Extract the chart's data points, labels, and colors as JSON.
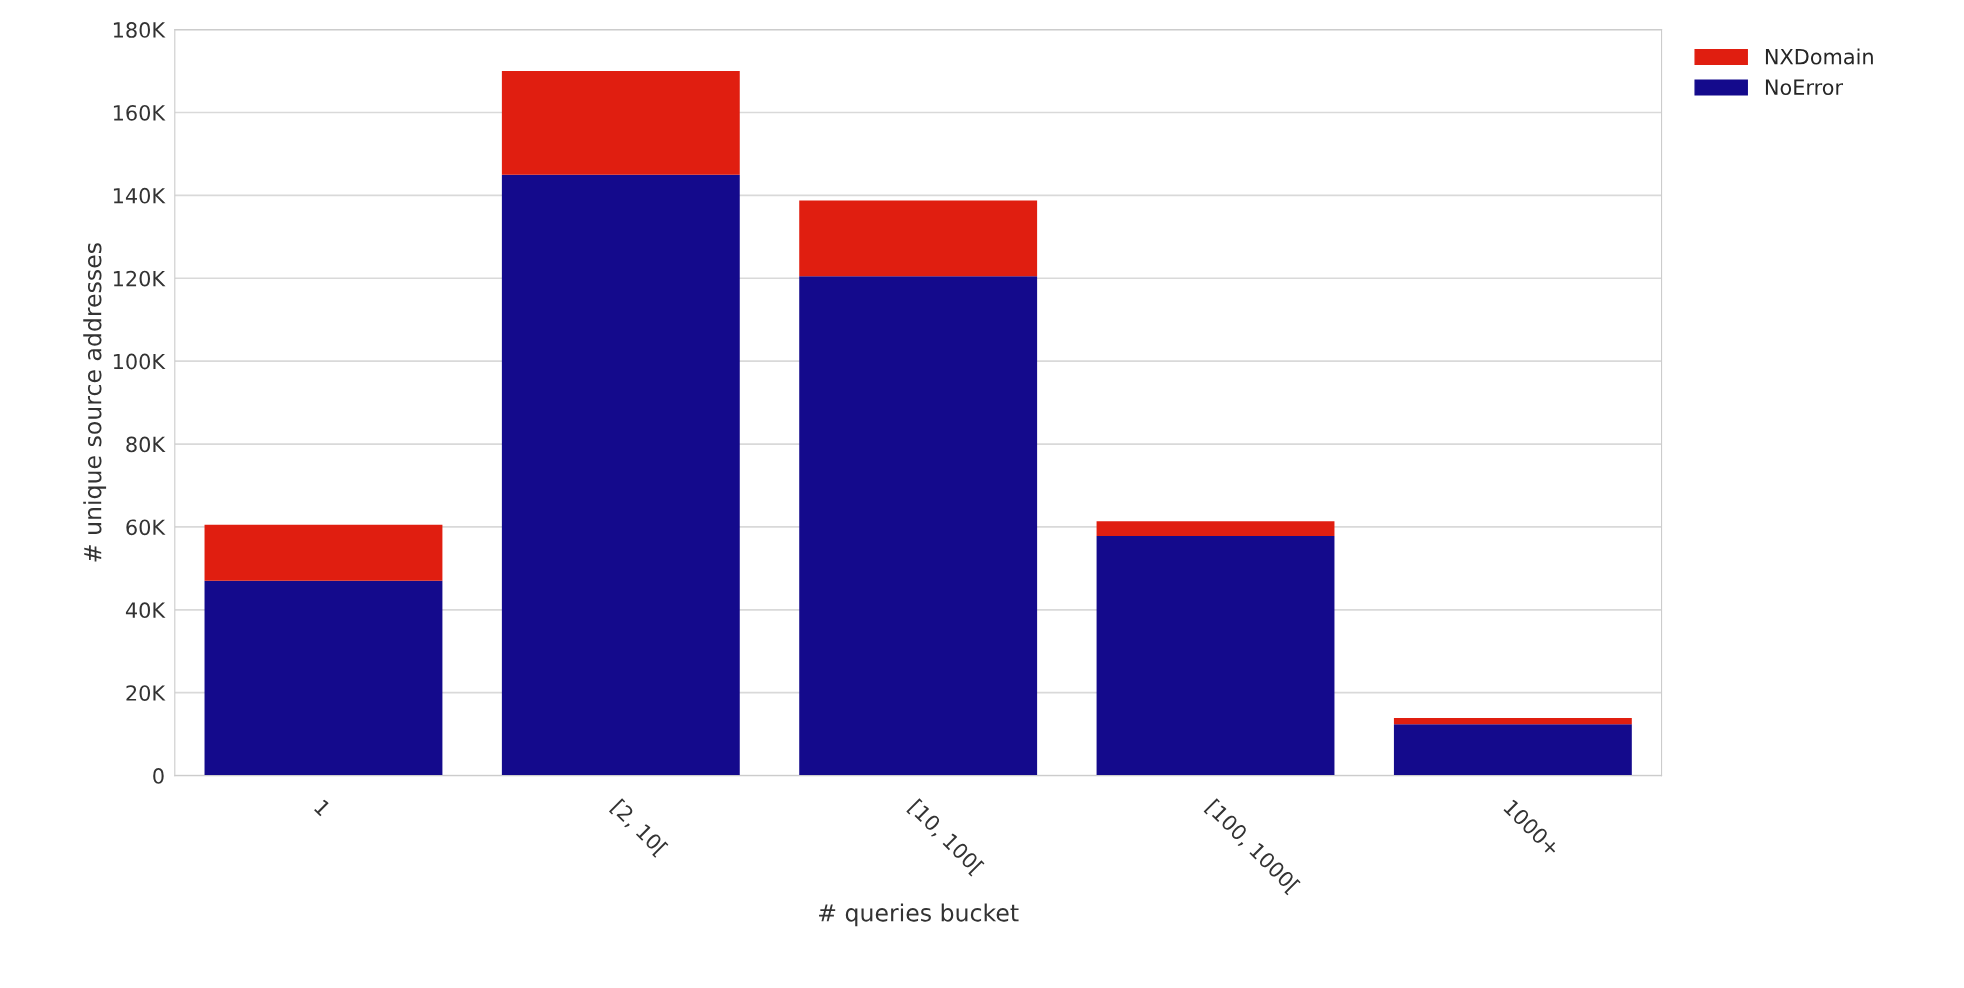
{
  "chart_data": {
    "type": "bar",
    "stacked": true,
    "xlabel": "# queries bucket",
    "ylabel": "# unique source addresses",
    "categories": [
      "1",
      "[2, 10[",
      "[10, 100[",
      "[100, 1000[",
      "1000+"
    ],
    "series": [
      {
        "name": "NoError",
        "color": "#140a8c",
        "values": [
          47000,
          145000,
          120500,
          57800,
          12400
        ]
      },
      {
        "name": "NXDomain",
        "color": "#e01e10",
        "values": [
          13500,
          25000,
          18300,
          3600,
          1500
        ]
      }
    ],
    "ylim": [
      0,
      180000
    ],
    "yticks": [
      0,
      {
        "value": 20000,
        "label": "20K"
      },
      {
        "value": 40000,
        "label": "40K"
      },
      {
        "value": 60000,
        "label": "60K"
      },
      {
        "value": 80000,
        "label": "80K"
      },
      {
        "value": 100000,
        "label": "100K"
      },
      {
        "value": 120000,
        "label": "120K"
      },
      {
        "value": 140000,
        "label": "140K"
      },
      {
        "value": 160000,
        "label": "160K"
      },
      {
        "value": 180000,
        "label": "180K"
      }
    ],
    "grid": "y",
    "legend": "top right"
  }
}
